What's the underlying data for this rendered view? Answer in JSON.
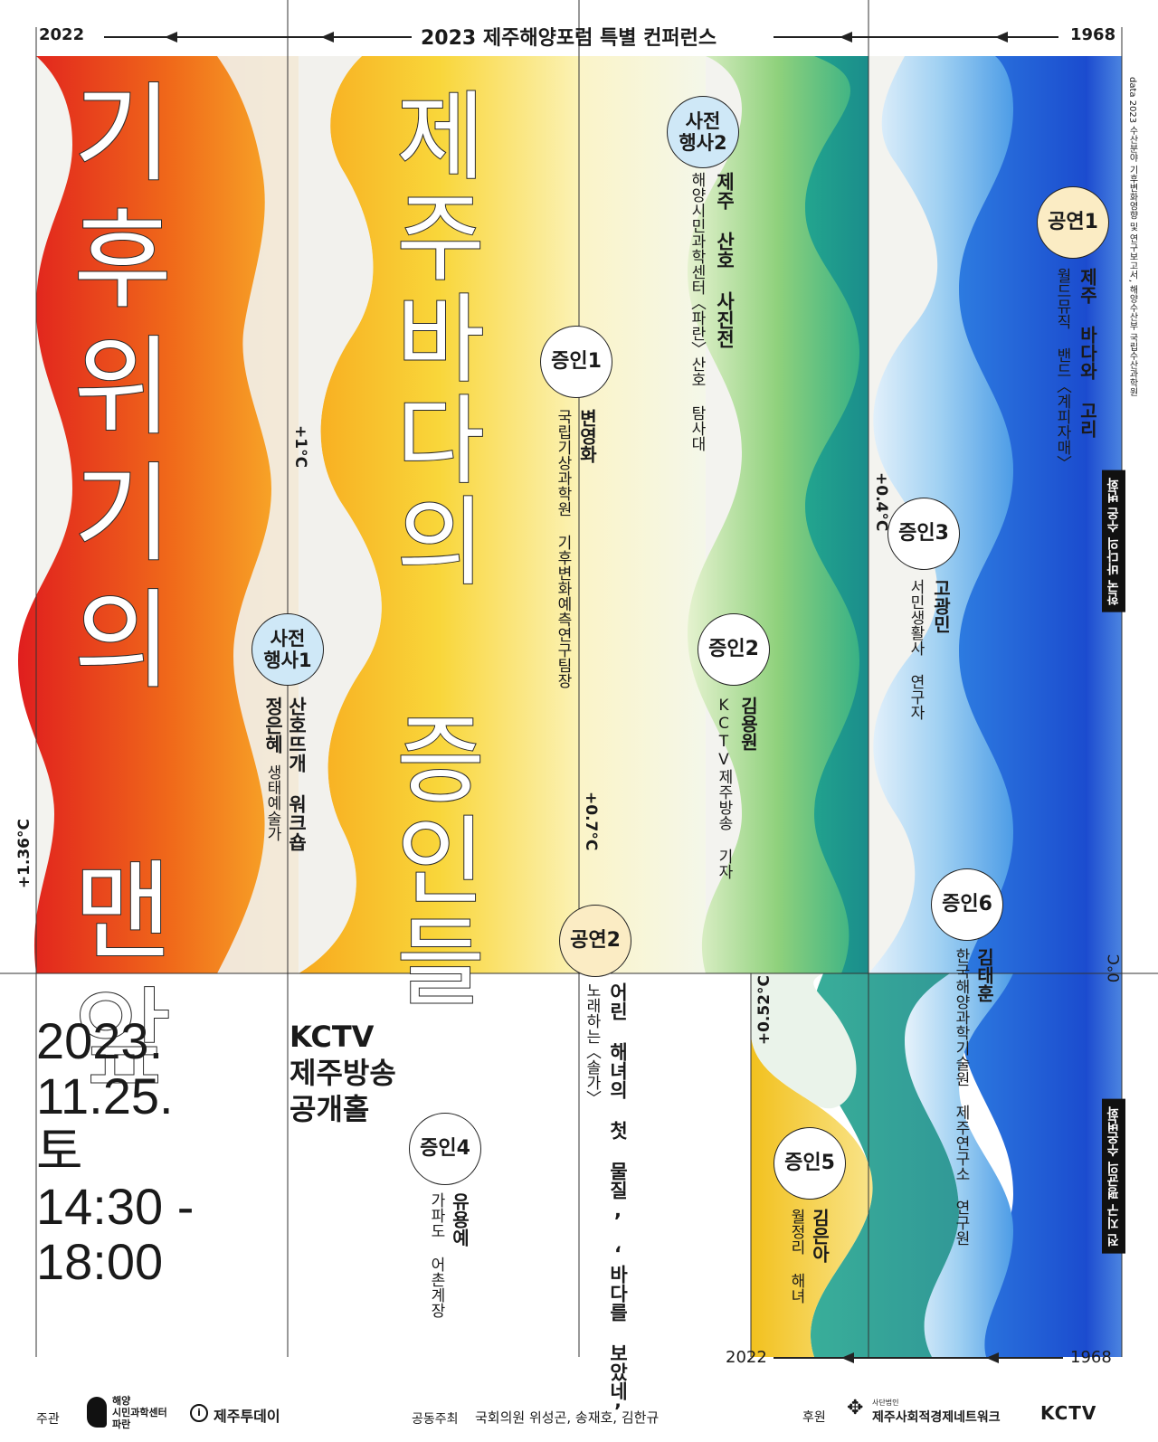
{
  "header": {
    "year_left": "2022",
    "title": "2023 제주해양포럼 특별 컨퍼런스",
    "year_right": "1968"
  },
  "main_title": {
    "line1": "기후위기의 맨앞",
    "line2": "제주바다의 증인들"
  },
  "side_note": {
    "data_source": "data  2023 수산분야 기후변화영향 및 연구보고서, 해양수산부 국립수산과학원",
    "badge_top": "한국 바다의 수온 변화",
    "badge_bottom": "전 지구 평균의 수온변화"
  },
  "temperatures": {
    "t_136": "+1.36°C",
    "t_1": "+1°C",
    "t_07": "+0.7°C",
    "t_052": "+0.52°C",
    "t_04": "+0.4°C",
    "t_0": "0°C"
  },
  "events": [
    {
      "badge": "사전\n행사1",
      "title": "산호뜨개 워크숍",
      "person": "정은혜",
      "role": "생태예술가"
    },
    {
      "badge": "사전\n행사2",
      "title": "제주 산호 사진전",
      "role": "해양시민과학센터〈파란〉산호 탐사대"
    },
    {
      "badge": "증인1",
      "person": "변영화",
      "role": "국립기상과학원 기후변화예측연구팀장"
    },
    {
      "badge": "증인2",
      "person": "김용원",
      "role": "KCTV제주방송 기자"
    },
    {
      "badge": "증인3",
      "person": "고광민",
      "role": "서민생활사 연구자"
    },
    {
      "badge": "증인4",
      "person": "유용예",
      "role": "가파도 어촌계장"
    },
    {
      "badge": "증인5",
      "person": "김은아",
      "role": "월정리 해녀"
    },
    {
      "badge": "증인6",
      "person": "김태훈",
      "role": "한국해양과학기술원 제주연구소 연구원"
    },
    {
      "badge": "공연1",
      "title": "제주 바다와 고리",
      "role": "월드뮤직 밴드〈계피자매〉"
    },
    {
      "badge": "공연2",
      "title": "어린 해녀의 첫 물질, ‘바다를 보았네’",
      "role": "노래하는〈솔가〉"
    }
  ],
  "schedule": {
    "date_line1": "2023.",
    "date_line2": "11.25.",
    "date_line3": "토",
    "time_line1": "14:30 -",
    "time_line2": "18:00",
    "venue_line1": "KCTV",
    "venue_line2": "제주방송",
    "venue_line3": "공개홀"
  },
  "bottom_axis": {
    "year_left": "2022",
    "year_right": "1968"
  },
  "footer": {
    "host_label": "주관",
    "host1_line1": "해양",
    "host1_line2": "시민과학센터",
    "host1_line3": "파란",
    "host2": "제주투데이",
    "cohost_label": "공동주최",
    "cohost": "국회의원 위성곤, 송재호, 김한규",
    "sponsor_label": "후원",
    "sponsor1_small": "사단법인",
    "sponsor1": "제주사회적경제네트워크",
    "sponsor2": "KCTV"
  },
  "colors": {
    "red": "#e8321f",
    "orange": "#f5a31b",
    "yellow": "#f7dc4a",
    "green": "#5fbf6a",
    "teal": "#1d9c8f",
    "blue": "#2e6fd6",
    "navy": "#1841c9"
  }
}
